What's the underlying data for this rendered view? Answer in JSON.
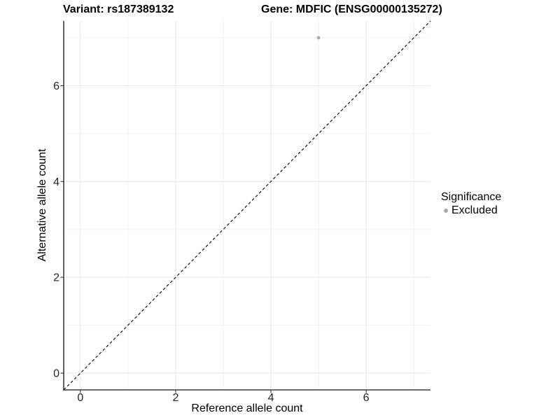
{
  "chart_data": {
    "type": "scatter",
    "titles": [
      "Variant: rs187389132",
      "Gene: MDFIC (ENSG00000135272)"
    ],
    "xlabel": "Reference allele count",
    "ylabel": "Alternative allele count",
    "xlim": [
      -0.35,
      7.35
    ],
    "ylim": [
      -0.35,
      7.35
    ],
    "x_ticks": [
      0,
      2,
      4,
      6
    ],
    "y_ticks": [
      0,
      2,
      4,
      6
    ],
    "x_tick_labels": [
      "0",
      "2",
      "4",
      "6"
    ],
    "y_tick_labels": [
      "0",
      "2",
      "4",
      "6"
    ],
    "x_minor_gridlines": [
      1,
      3,
      5,
      7
    ],
    "y_minor_gridlines": [
      1,
      3,
      5,
      7
    ],
    "grid": "on",
    "identity_line": {
      "style": "dashed",
      "slope": 1,
      "intercept": 0,
      "color": "#000000"
    },
    "series": [
      {
        "name": "Excluded",
        "color": "#aaaaaa",
        "points": [
          {
            "x": 5,
            "y": 7
          }
        ]
      }
    ],
    "legend": {
      "title": "Significance",
      "position": "right-center",
      "items": [
        {
          "label": "Excluded",
          "color": "#aaaaaa",
          "marker": "circle"
        }
      ]
    },
    "colors": {
      "background": "#ffffff",
      "grid_major": "#e6e6e6",
      "grid_minor": "#f1f1f1",
      "axis_line": "#3c3c3c",
      "tick_mark": "#333333",
      "tick_label": "#262626",
      "title_text": "#000000"
    }
  }
}
